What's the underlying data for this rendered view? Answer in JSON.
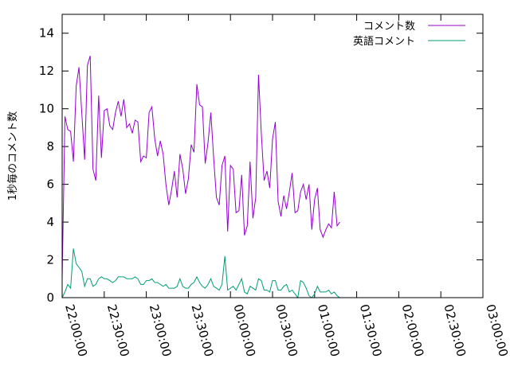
{
  "chart_data": {
    "type": "line",
    "title": "",
    "xlabel": "",
    "ylabel": "1秒毎のコメント数",
    "xlim": [
      "22:00:00",
      "03:00:00"
    ],
    "ylim": [
      0,
      15
    ],
    "x_ticks": [
      "22:00:00",
      "22:30:00",
      "23:00:00",
      "23:30:00",
      "00:00:00",
      "00:30:00",
      "01:00:00",
      "01:30:00",
      "02:00:00",
      "02:30:00",
      "03:00:00"
    ],
    "y_ticks": [
      0,
      2,
      4,
      6,
      8,
      10,
      12,
      14
    ],
    "grid": false,
    "legend_position": "top-right",
    "x_interval_minutes": 2,
    "series": [
      {
        "name": "コメント数",
        "color": "#9400d3",
        "values": [
          1.0,
          9.6,
          8.9,
          8.8,
          7.2,
          11.2,
          12.2,
          9.8,
          7.3,
          12.3,
          12.8,
          6.8,
          6.2,
          10.7,
          7.4,
          9.9,
          10.0,
          9.1,
          8.9,
          9.8,
          10.4,
          9.6,
          10.5,
          9.0,
          9.2,
          8.7,
          9.4,
          9.3,
          7.2,
          7.5,
          7.4,
          9.8,
          10.1,
          8.4,
          7.5,
          8.3,
          7.6,
          6.0,
          4.9,
          5.7,
          6.7,
          5.3,
          7.6,
          6.8,
          5.5,
          6.3,
          8.1,
          7.7,
          11.3,
          10.2,
          10.1,
          7.1,
          8.2,
          9.8,
          7.4,
          5.3,
          4.9,
          7.0,
          7.5,
          3.5,
          7.0,
          6.8,
          4.5,
          4.6,
          6.5,
          3.3,
          3.8,
          7.2,
          4.2,
          5.3,
          11.8,
          8.7,
          6.2,
          6.7,
          5.8,
          8.4,
          9.3,
          5.1,
          4.3,
          5.4,
          4.7,
          5.6,
          6.6,
          4.5,
          4.6,
          5.6,
          6.0,
          5.2,
          6.0,
          3.6,
          5.2,
          5.8,
          3.6,
          3.2,
          3.6,
          3.9,
          3.7,
          5.6,
          3.8,
          4.0
        ]
      },
      {
        "name": "英語コメント",
        "color": "#009e73",
        "values": [
          0.0,
          0.3,
          0.7,
          0.5,
          2.6,
          1.8,
          1.6,
          1.4,
          0.6,
          1.0,
          1.0,
          0.6,
          0.7,
          1.0,
          1.1,
          1.0,
          1.0,
          0.9,
          0.8,
          0.9,
          1.1,
          1.1,
          1.1,
          1.0,
          1.0,
          1.0,
          1.1,
          1.0,
          0.7,
          0.7,
          0.9,
          0.9,
          1.0,
          0.8,
          0.8,
          0.7,
          0.6,
          0.7,
          0.5,
          0.5,
          0.5,
          0.6,
          1.0,
          0.6,
          0.5,
          0.5,
          0.7,
          0.8,
          1.1,
          0.8,
          0.6,
          0.5,
          0.7,
          1.0,
          0.6,
          0.5,
          0.4,
          0.7,
          2.2,
          0.4,
          0.5,
          0.6,
          0.4,
          0.7,
          1.0,
          0.3,
          0.2,
          0.6,
          0.5,
          0.4,
          1.0,
          0.9,
          0.4,
          0.4,
          0.3,
          0.9,
          0.9,
          0.4,
          0.4,
          0.6,
          0.7,
          0.3,
          0.4,
          0.2,
          0.0,
          0.9,
          0.8,
          0.5,
          0.1,
          0.0,
          0.2,
          0.6,
          0.3,
          0.3,
          0.3,
          0.4,
          0.2,
          0.3,
          0.1,
          0.0
        ]
      }
    ]
  }
}
